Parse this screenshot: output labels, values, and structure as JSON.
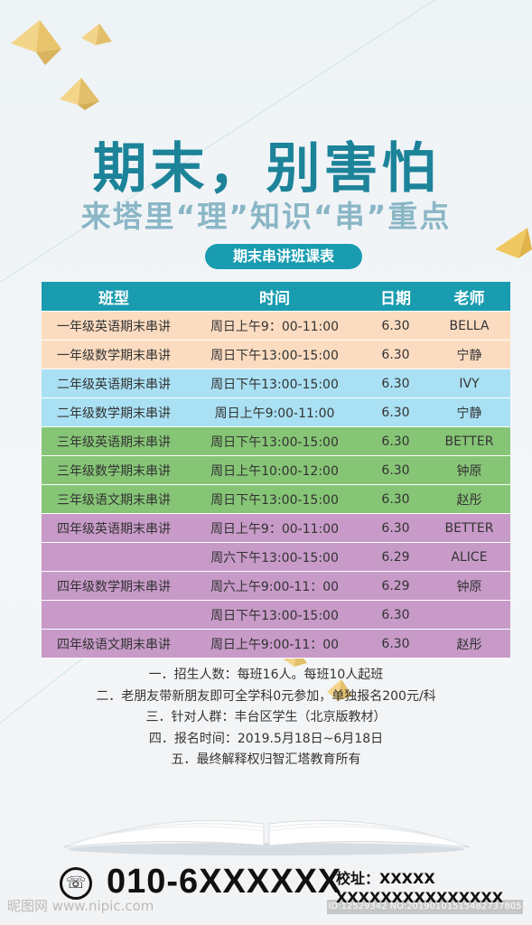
{
  "headline": "期末，别害怕",
  "subheadline": "来塔里“理”知识“串”重点",
  "schedule_title": "期末串讲班课表",
  "table": {
    "headers": [
      "班型",
      "时间",
      "日期",
      "老师"
    ],
    "rows": [
      {
        "class": "一年级英语期末串讲",
        "time": "周日上午9：00-11:00",
        "date": "6.30",
        "teacher": "BELLA",
        "color": "#fbdcc0"
      },
      {
        "class": "一年级数学期末串讲",
        "time": "周日下午13:00-15:00",
        "date": "6.30",
        "teacher": "宁静",
        "color": "#fbdcc0"
      },
      {
        "class": "二年级英语期末串讲",
        "time": "周日下午13:00-15:00",
        "date": "6.30",
        "teacher": "IVY",
        "color": "#a9e0f3"
      },
      {
        "class": "二年级数学期末串讲",
        "time": "周日上午9:00-11:00",
        "date": "6.30",
        "teacher": "宁静",
        "color": "#a9e0f3"
      },
      {
        "class": "三年级英语期末串讲",
        "time": "周日下午13:00-15:00",
        "date": "6.30",
        "teacher": "BETTER",
        "color": "#86c576"
      },
      {
        "class": "三年级数学期末串讲",
        "time": "周日上午10:00-12:00",
        "date": "6.30",
        "teacher": "钟原",
        "color": "#86c576"
      },
      {
        "class": "三年级语文期末串讲",
        "time": "周日下午13:00-15:00",
        "date": "6.30",
        "teacher": "赵彤",
        "color": "#86c576"
      },
      {
        "class": "四年级英语期末串讲",
        "time": "周日上午9：00-11:00",
        "date": "6.30",
        "teacher": "BETTER",
        "color": "#c79ac8"
      },
      {
        "class": "",
        "time": "周六下午13:00-15:00",
        "date": "6.29",
        "teacher": "ALICE",
        "color": "#c79ac8"
      },
      {
        "class": "四年级数学期末串讲",
        "time": "周六上午9:00-11：00",
        "date": "6.29",
        "teacher": "钟原",
        "color": "#c79ac8"
      },
      {
        "class": "",
        "time": "周日下午13:00-15:00",
        "date": "6.30",
        "teacher": "",
        "color": "#c79ac8"
      },
      {
        "class": "四年级语文期末串讲",
        "time": "周日上午9:00-11：00",
        "date": "6.30",
        "teacher": "赵彤",
        "color": "#c79ac8"
      }
    ]
  },
  "notes": [
    "一．招生人数：每班16人。每班10人起班",
    "二．老朋友带新朋友即可全学科0元参加，单独报名200元/科",
    "三．针对人群：丰台区学生（北京版教材）",
    "四．报名时间：2019.5月18日~6月18日",
    "五．最终解释权归智汇塔教育所有"
  ],
  "contact": {
    "phone_icon": "phone-icon",
    "phone": "010-6XXXXXX",
    "address_label": "校址：XXXXX",
    "address_value": "XXXXXXXXXXXXXXX"
  },
  "watermark": {
    "site": "昵图网 www.nipic.com",
    "id": "ID:12529342 NO:20190101515482737805"
  },
  "colors": {
    "teal": "#1a9cb0",
    "headline": "#1c8399",
    "subhead": "#8ab6c6"
  }
}
